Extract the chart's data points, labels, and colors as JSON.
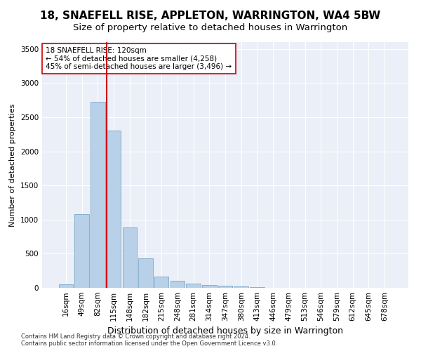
{
  "title": "18, SNAEFELL RISE, APPLETON, WARRINGTON, WA4 5BW",
  "subtitle": "Size of property relative to detached houses in Warrington",
  "xlabel": "Distribution of detached houses by size in Warrington",
  "ylabel": "Number of detached properties",
  "categories": [
    "16sqm",
    "49sqm",
    "82sqm",
    "115sqm",
    "148sqm",
    "182sqm",
    "215sqm",
    "248sqm",
    "281sqm",
    "314sqm",
    "347sqm",
    "380sqm",
    "413sqm",
    "446sqm",
    "479sqm",
    "513sqm",
    "546sqm",
    "579sqm",
    "612sqm",
    "645sqm",
    "678sqm"
  ],
  "values": [
    50,
    1080,
    2730,
    2300,
    880,
    430,
    160,
    100,
    65,
    45,
    30,
    20,
    10,
    5,
    3,
    2,
    1,
    1,
    0,
    0,
    0
  ],
  "bar_color": "#b8d0e8",
  "bar_edge_color": "#6a9ec0",
  "vline_x_index": 3,
  "vline_color": "#cc0000",
  "annotation_text": "18 SNAEFELL RISE: 120sqm\n← 54% of detached houses are smaller (4,258)\n45% of semi-detached houses are larger (3,496) →",
  "annotation_box_color": "white",
  "annotation_box_edge": "#cc0000",
  "ylim": [
    0,
    3600
  ],
  "yticks": [
    0,
    500,
    1000,
    1500,
    2000,
    2500,
    3000,
    3500
  ],
  "footer1": "Contains HM Land Registry data © Crown copyright and database right 2024.",
  "footer2": "Contains public sector information licensed under the Open Government Licence v3.0.",
  "background_color": "#eaeff8",
  "grid_color": "#ffffff",
  "title_fontsize": 11,
  "subtitle_fontsize": 9.5,
  "xlabel_fontsize": 9,
  "ylabel_fontsize": 8,
  "tick_fontsize": 7.5,
  "annotation_fontsize": 7.5,
  "footer_fontsize": 6
}
